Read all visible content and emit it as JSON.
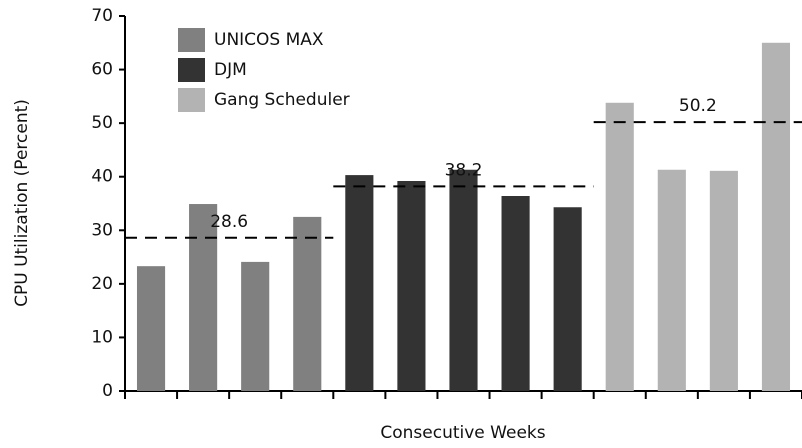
{
  "chart_data": {
    "type": "bar",
    "x_label": "Consecutive Weeks",
    "y_label": "CPU Utilization (Percent)",
    "categories": [
      null,
      null,
      null,
      null,
      null,
      null,
      null,
      null,
      null,
      null,
      null,
      null,
      null
    ],
    "series": [
      {
        "name": "UNICOS MAX",
        "color": "#808080",
        "average": 28.6,
        "values": [
          23.3,
          34.9,
          24.1,
          32.5,
          null,
          null,
          null,
          null,
          null,
          null,
          null,
          null,
          null
        ]
      },
      {
        "name": "DJM",
        "color": "#333333",
        "average": 38.2,
        "values": [
          null,
          null,
          null,
          null,
          40.3,
          39.2,
          41.3,
          36.4,
          34.3,
          null,
          null,
          null,
          null
        ]
      },
      {
        "name": "Gang Scheduler",
        "color": "#b3b3b3",
        "average": 50.2,
        "values": [
          null,
          null,
          null,
          null,
          null,
          null,
          null,
          null,
          null,
          53.8,
          41.3,
          41.1,
          65.0
        ]
      }
    ],
    "ylim": [
      0,
      70
    ],
    "yticks": [
      0,
      10,
      20,
      30,
      40,
      50,
      60,
      70
    ],
    "legend": "upper left"
  }
}
